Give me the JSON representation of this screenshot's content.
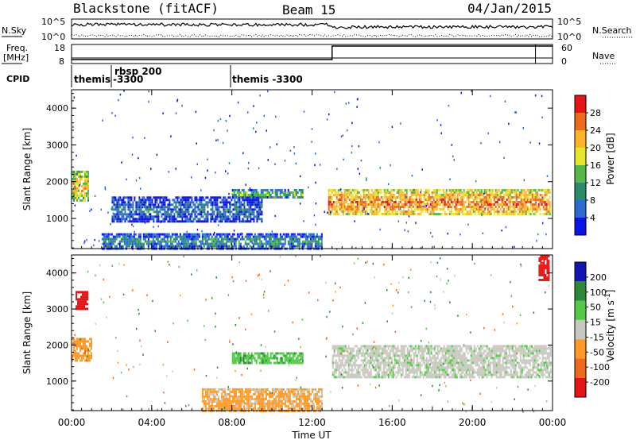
{
  "header": {
    "station": "Blackstone (fitACF)",
    "beam": "Beam 15",
    "date": "04/Jan/2015"
  },
  "left_labels": {
    "nsky": "N.Sky",
    "freq_line1": "Freq.",
    "freq_line2": "[MHz]",
    "cpid": "CPID"
  },
  "right_labels": {
    "nsearch": "N.Search",
    "nave": "Nave"
  },
  "noise_panel": {
    "left_ticks": [
      "10^5",
      "10^0"
    ],
    "right_ticks": [
      "10^5",
      "10^0"
    ]
  },
  "freq_panel": {
    "left_ticks": [
      "18",
      "8"
    ],
    "right_ticks": [
      "60",
      "0"
    ]
  },
  "cpid_panel": {
    "programs": [
      {
        "label": "themis",
        "start_hour": 0.0
      },
      {
        "label": "rbsp 200",
        "sublabel": "-3300",
        "start_hour": 2.05
      },
      {
        "label": "themis -3300",
        "start_hour": 8.0
      }
    ]
  },
  "colors": {
    "power": [
      "#0a14e6",
      "#2a6cd2",
      "#2a8a6a",
      "#55b848",
      "#e6e62a",
      "#ffb428",
      "#f06a1e",
      "#e61414"
    ],
    "velocity": [
      "#e61414",
      "#f06a1e",
      "#ff9a28",
      "#c8c8c0",
      "#55c84a",
      "#2a8a3a",
      "#1414b4"
    ],
    "ground_scatter": "#c8c8c0"
  },
  "chart_data": [
    {
      "type": "heatmap",
      "panel": "power",
      "xlabel": "",
      "ylabel": "Slant Range [km]",
      "x_unit": "hours UT",
      "xlim": [
        0,
        24
      ],
      "ylim": [
        180,
        4500
      ],
      "yticks": [
        1000,
        2000,
        3000,
        4000
      ],
      "xticks": [
        "00:00",
        "04:00",
        "08:00",
        "12:00",
        "16:00",
        "20:00",
        "00:00"
      ],
      "colorbar": {
        "label": "Power [dB]",
        "ticks": [
          "28",
          "24",
          "20",
          "16",
          "12",
          "8",
          "4"
        ],
        "range": [
          0,
          30
        ]
      },
      "regions": [
        {
          "name": "early-echo-patch",
          "x": [
            0.0,
            0.8
          ],
          "y_range": [
            1500,
            2300
          ],
          "power_db": 20
        },
        {
          "name": "near-range-scatter",
          "x": [
            1.5,
            12.5
          ],
          "y_range": [
            200,
            600
          ],
          "power_db": 10
        },
        {
          "name": "night-band",
          "x": [
            2.0,
            9.5
          ],
          "y_range": [
            900,
            1600
          ],
          "power_db": 8
        },
        {
          "name": "morning-band",
          "x": [
            8.0,
            11.5
          ],
          "y_range": [
            1600,
            1800
          ],
          "power_db": 14
        },
        {
          "name": "main-band",
          "x": [
            12.8,
            23.9
          ],
          "y_range": [
            1100,
            1800
          ],
          "power_db": 24
        }
      ]
    },
    {
      "type": "heatmap",
      "panel": "velocity",
      "xlabel": "Time UT",
      "ylabel": "Slant Range [km]",
      "x_unit": "hours UT",
      "xlim": [
        0,
        24
      ],
      "ylim": [
        180,
        4500
      ],
      "yticks": [
        1000,
        2000,
        3000,
        4000
      ],
      "xticks": [
        "00:00",
        "04:00",
        "08:00",
        "12:00",
        "16:00",
        "20:00",
        "00:00"
      ],
      "colorbar": {
        "label": "Velocity [m s^-1]",
        "ticks": [
          "200",
          "100",
          "50",
          "15",
          "-15",
          "-50",
          "-100",
          "-200"
        ],
        "range": [
          -250,
          250
        ]
      },
      "regions": [
        {
          "name": "early-red-patch",
          "x": [
            0.2,
            0.8
          ],
          "y_range": [
            3000,
            3500
          ],
          "velocity": -200
        },
        {
          "name": "early-orange",
          "x": [
            0.0,
            1.0
          ],
          "y_range": [
            1600,
            2200
          ],
          "velocity": -60
        },
        {
          "name": "near-range-orange",
          "x": [
            6.5,
            12.5
          ],
          "y_range": [
            200,
            800
          ],
          "velocity": -40
        },
        {
          "name": "morning-green-band",
          "x": [
            8.0,
            11.5
          ],
          "y_range": [
            1500,
            1800
          ],
          "velocity": 40
        },
        {
          "name": "ground-scatter-main",
          "x": [
            13.0,
            23.9
          ],
          "y_range": [
            1100,
            2000
          ],
          "velocity": 0
        },
        {
          "name": "late-red-patch",
          "x": [
            23.3,
            23.8
          ],
          "y_range": [
            3800,
            4500
          ],
          "velocity": -200
        }
      ]
    }
  ],
  "time_axis_label": "Time UT"
}
